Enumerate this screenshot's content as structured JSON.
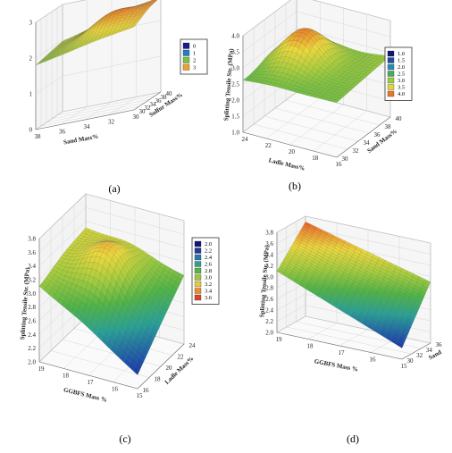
{
  "chart_data": [
    {
      "panel": "(a)",
      "type": "surface",
      "xlabel": "Sand Mass%",
      "ylabel": "Sulfur Mass%",
      "zlabel": "",
      "x_ticks": [
        "38",
        "36",
        "34",
        "32",
        "30"
      ],
      "y_ticks": [
        "30",
        "32",
        "34",
        "36",
        "38",
        "40"
      ],
      "z_ticks": [
        "0",
        "1",
        "2",
        "3"
      ],
      "zlim": [
        0,
        3.5
      ],
      "legend": [
        "0",
        "1",
        "2",
        "3"
      ],
      "legend_colors": [
        "#1a1a8c",
        "#1f7fbf",
        "#7fbf3f",
        "#f0a030"
      ],
      "corners": {
        "front_left": 2.1,
        "front_right": 2.7,
        "back_left": 2.3,
        "back_right": 3.1
      },
      "peaks": [
        {
          "u": 0.62,
          "v": 0.55,
          "h": 0.45
        }
      ]
    },
    {
      "panel": "(b)",
      "type": "surface",
      "xlabel": "Ladle Mass%",
      "ylabel": "Sand Mass%",
      "zlabel": "Splitting Tensile Str. (MPa)",
      "x_ticks": [
        "24",
        "22",
        "20",
        "18",
        "16"
      ],
      "y_ticks": [
        "30",
        "32",
        "34",
        "36",
        "38",
        "40"
      ],
      "z_ticks": [
        "1.0",
        "1.5",
        "2.0",
        "2.5",
        "3.0",
        "3.5",
        "4.0"
      ],
      "zlim": [
        1.0,
        4.0
      ],
      "legend": [
        "1.0",
        "1.5",
        "2.0",
        "2.5",
        "3.0",
        "3.5",
        "4.0"
      ],
      "legend_colors": [
        "#141478",
        "#1e50a0",
        "#2a8cb4",
        "#46aa64",
        "#9ccd3c",
        "#e6d23c",
        "#e6782d"
      ],
      "corners": {
        "front_left": 2.6,
        "front_right": 2.7,
        "back_left": 2.4,
        "back_right": 2.9
      },
      "peaks": [
        {
          "u": 0.3,
          "v": 0.6,
          "h": 1.1
        }
      ]
    },
    {
      "panel": "(c)",
      "type": "surface",
      "xlabel": "GGBFS Mass %",
      "ylabel": "Ladle Mass%",
      "zlabel": "Splitting Tensile Str. (MPa)",
      "x_ticks": [
        "19",
        "18",
        "17",
        "16",
        "15"
      ],
      "y_ticks": [
        "16",
        "18",
        "20",
        "22",
        "24"
      ],
      "z_ticks": [
        "2.0",
        "2.2",
        "2.4",
        "2.6",
        "2.8",
        "3.0",
        "3.2",
        "3.4",
        "3.6",
        "3.8"
      ],
      "zlim": [
        2.0,
        3.8
      ],
      "legend": [
        "2.0",
        "2.2",
        "2.4",
        "2.6",
        "2.8",
        "3.0",
        "3.2",
        "3.4",
        "3.6"
      ],
      "legend_colors": [
        "#141478",
        "#1e3c9c",
        "#2878b4",
        "#32a08c",
        "#5ab448",
        "#a0c83c",
        "#e6c83c",
        "#eb8c32",
        "#dc4628"
      ],
      "corners": {
        "front_left": 3.1,
        "front_right": 2.2,
        "back_left": 3.3,
        "back_right": 3.0
      },
      "peaks": [
        {
          "u": 0.45,
          "v": 0.55,
          "h": 0.5
        }
      ]
    },
    {
      "panel": "(d)",
      "type": "surface",
      "xlabel": "GGBFS Mass %",
      "ylabel": "Sand",
      "zlabel": "Splitting Tensile Str. (MPa)",
      "x_ticks": [
        "19",
        "18",
        "17",
        "16",
        "15"
      ],
      "y_ticks": [
        "30",
        "32",
        "34",
        "36"
      ],
      "z_ticks": [
        "2.0",
        "2.2",
        "2.4",
        "2.6",
        "2.8",
        "3.0",
        "3.2",
        "3.4",
        "3.6",
        "3.8"
      ],
      "zlim": [
        2.0,
        3.8
      ],
      "legend": [],
      "corners": {
        "front_left": 3.1,
        "front_right": 2.2,
        "back_left": 3.7,
        "back_right": 3.1
      },
      "peaks": []
    }
  ]
}
